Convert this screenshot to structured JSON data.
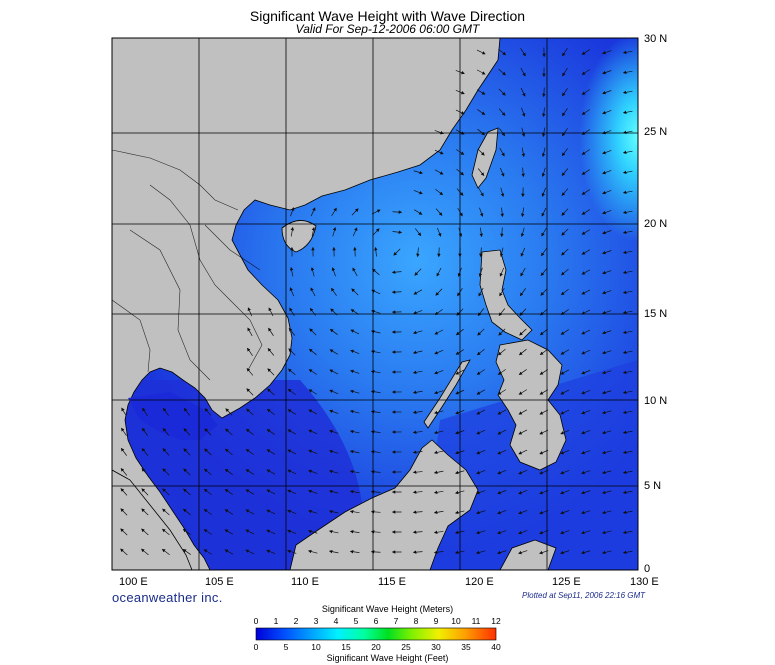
{
  "title": "Significant Wave Height with Wave Direction",
  "subtitle": "Valid For Sep-12-2006 06:00 GMT",
  "lon_labels": [
    "100 E",
    "105 E",
    "110 E",
    "115 E",
    "120 E",
    "125 E",
    "130 E"
  ],
  "lat_labels": [
    "30 N",
    "25 N",
    "20 N",
    "15 N",
    "10 N",
    "5 N",
    "0"
  ],
  "brand": "oceanweather inc.",
  "plotted": "Plotted at Sep11, 2006 22:16 GMT",
  "colors": {
    "land": "#c0c0c0",
    "deep": "#1a2ad8",
    "mid": "#2f7ff0",
    "high": "#33d0ff",
    "peak": "#5ffcff"
  },
  "colorbar": {
    "meters_title": "Significant Wave Height (Meters)",
    "feet_title": "Significant Wave Height (Feet)",
    "meters_ticks": [
      "0",
      "1",
      "2",
      "3",
      "4",
      "5",
      "6",
      "7",
      "8",
      "9",
      "10",
      "11",
      "12"
    ],
    "feet_ticks": [
      "0",
      "5",
      "10",
      "15",
      "20",
      "25",
      "30",
      "35",
      "40"
    ],
    "gradient": [
      "#0000d8",
      "#0050ff",
      "#00a8ff",
      "#00f0ff",
      "#00ffa0",
      "#00e020",
      "#80f000",
      "#f0f000",
      "#ffa000",
      "#ff3000"
    ]
  }
}
